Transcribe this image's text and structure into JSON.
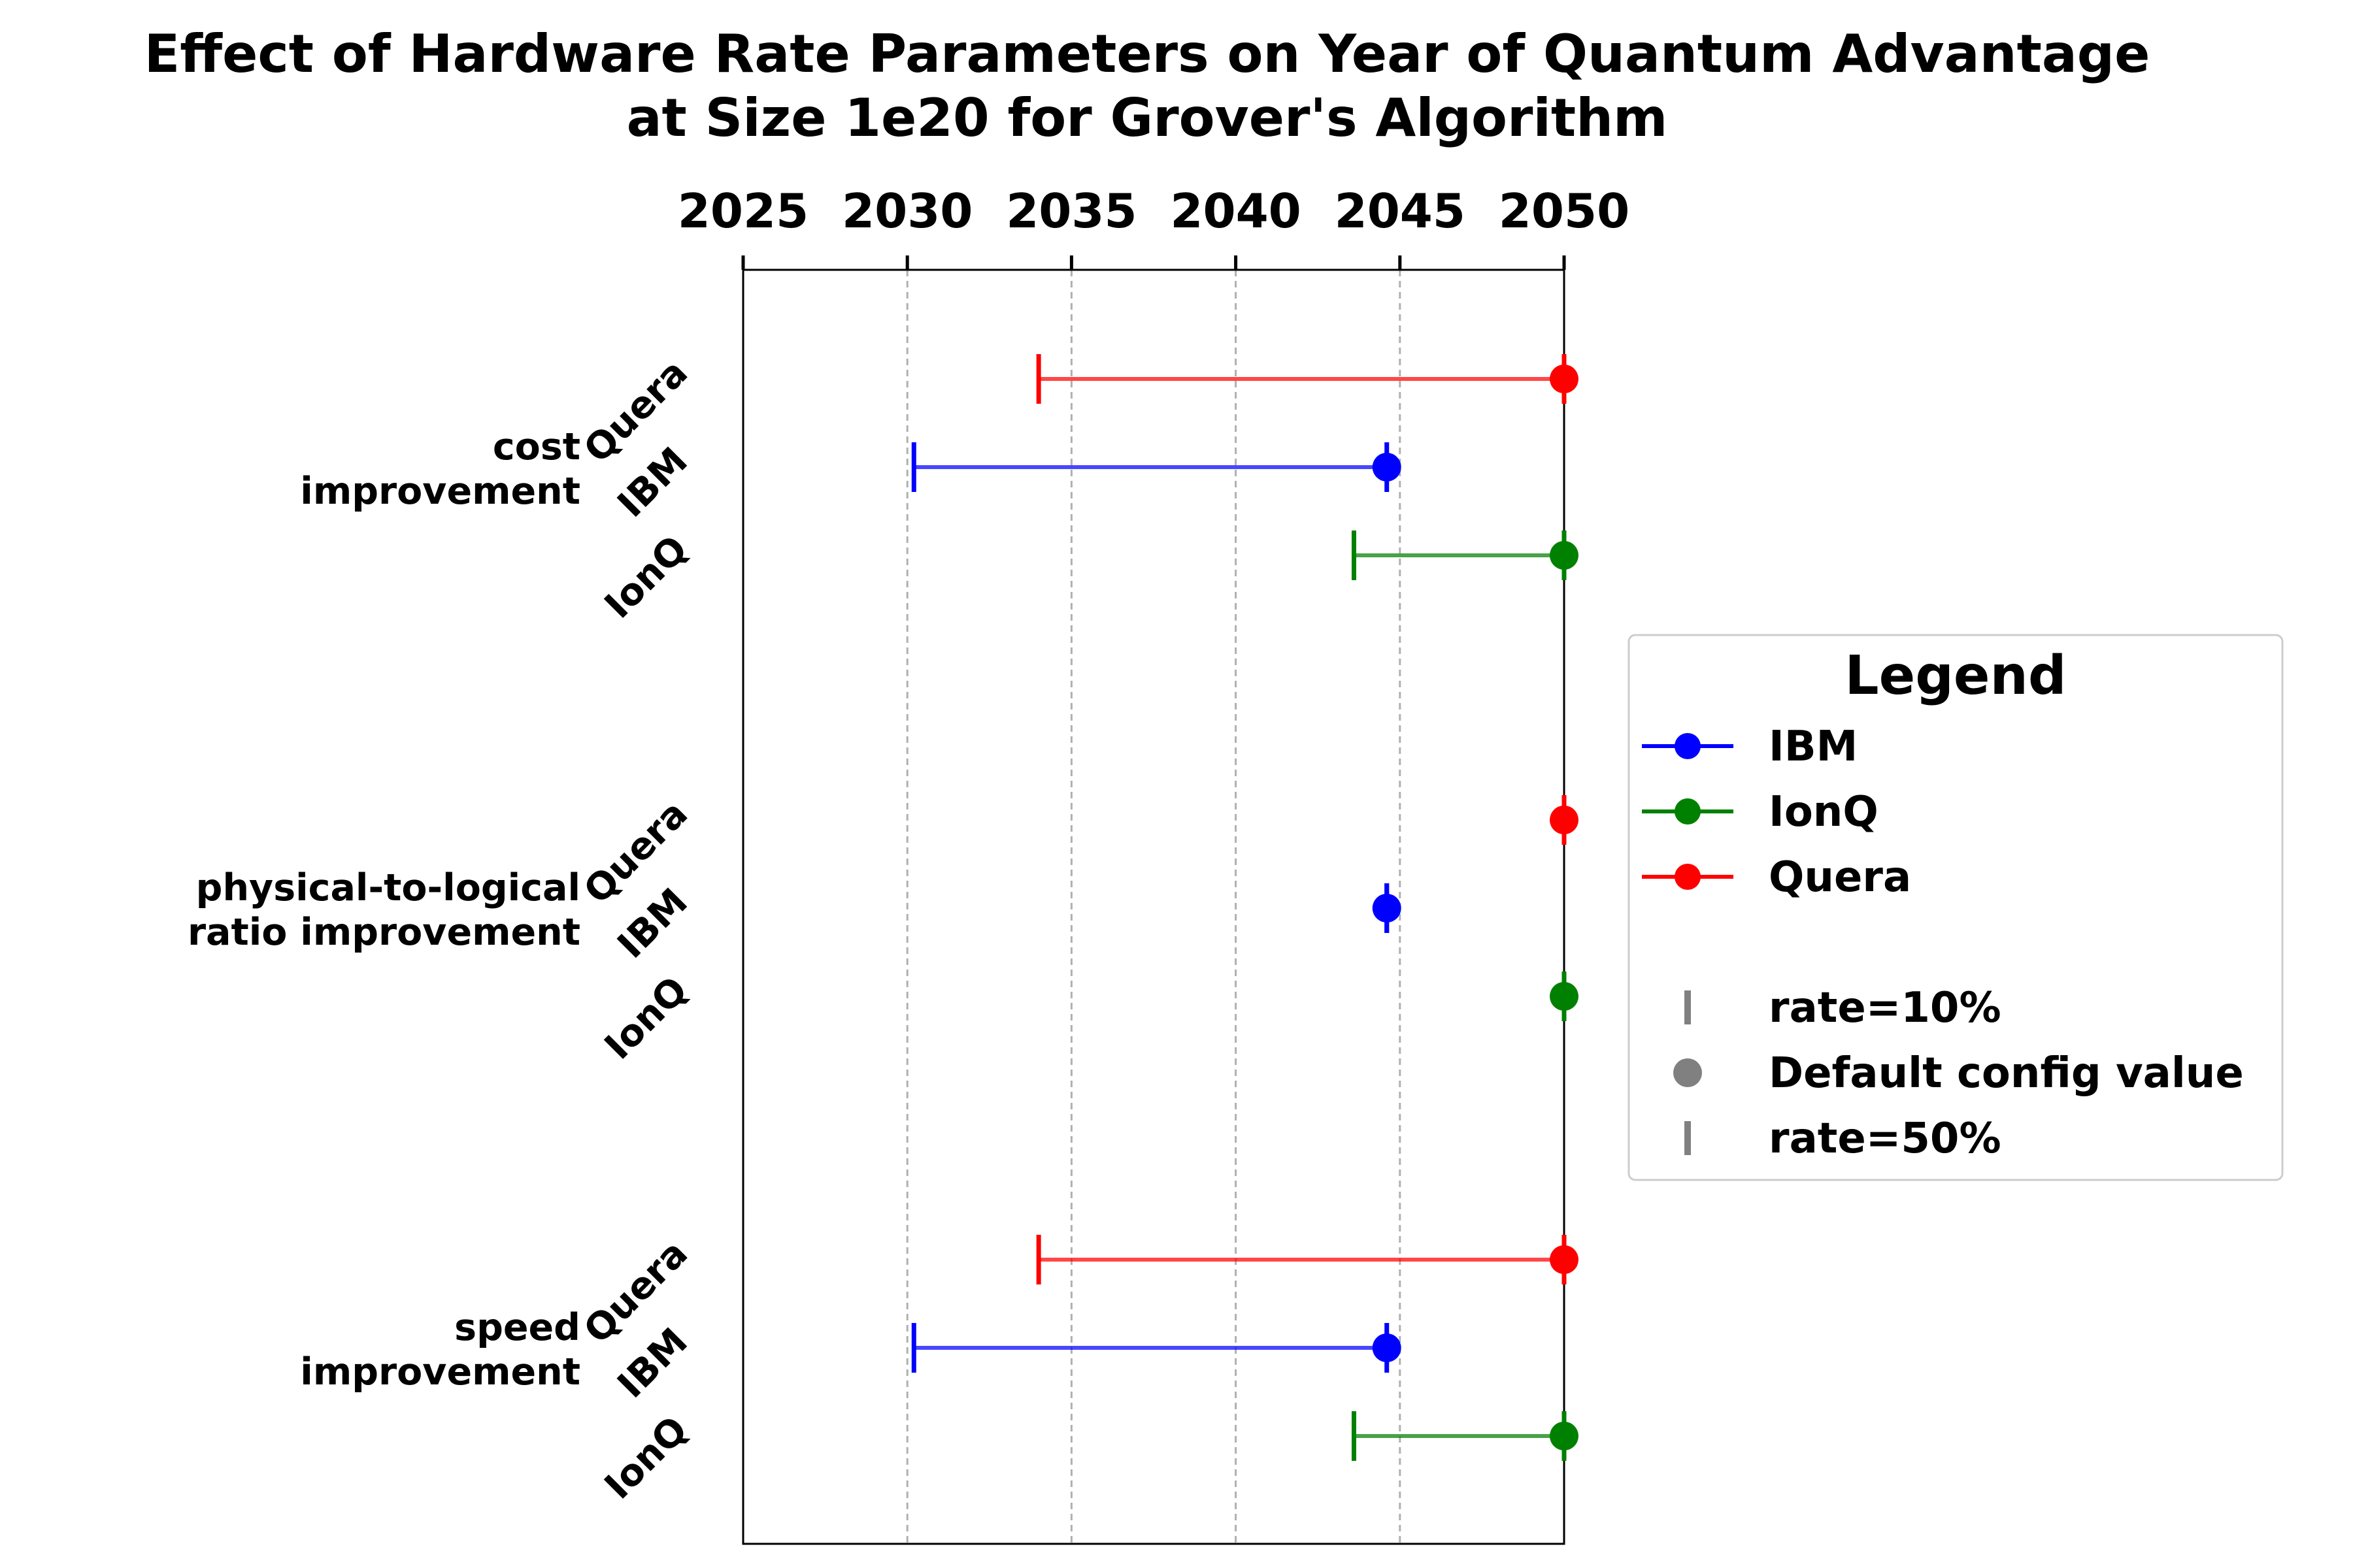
{
  "chart_data": {
    "type": "range-dot",
    "title_lines": [
      "Effect of Hardware Rate Parameters on Year of Quantum Advantage",
      "at Size 1e20 for Grover's Algorithm"
    ],
    "x_axis": {
      "position": "top",
      "range": [
        2025,
        2050
      ],
      "ticks": [
        2025,
        2030,
        2035,
        2040,
        2045,
        2050
      ],
      "tick_labels": [
        "2025",
        "2030",
        "2035",
        "2040",
        "2045",
        "2050"
      ],
      "grid": "vertical dashed"
    },
    "groups": [
      {
        "label_lines": [
          "cost",
          "improvement"
        ],
        "series": [
          {
            "name": "Quera",
            "color": "#ff0000",
            "rate_10": 2034,
            "default": 2050,
            "rate_50": 2050
          },
          {
            "name": "IBM",
            "color": "#0000ff",
            "rate_10": 2030.2,
            "default": 2044.6,
            "rate_50": 2044.6
          },
          {
            "name": "IonQ",
            "color": "#008000",
            "rate_10": 2043.6,
            "default": 2050,
            "rate_50": 2050
          }
        ]
      },
      {
        "label_lines": [
          "physical-to-logical",
          "ratio improvement"
        ],
        "series": [
          {
            "name": "Quera",
            "color": "#ff0000",
            "rate_10": 2050,
            "default": 2050,
            "rate_50": 2050
          },
          {
            "name": "IBM",
            "color": "#0000ff",
            "rate_10": 2044.6,
            "default": 2044.6,
            "rate_50": 2044.6
          },
          {
            "name": "IonQ",
            "color": "#008000",
            "rate_10": 2050,
            "default": 2050,
            "rate_50": 2050
          }
        ]
      },
      {
        "label_lines": [
          "speed",
          "improvement"
        ],
        "series": [
          {
            "name": "Quera",
            "color": "#ff0000",
            "rate_10": 2034,
            "default": 2050,
            "rate_50": 2050
          },
          {
            "name": "IBM",
            "color": "#0000ff",
            "rate_10": 2030.2,
            "default": 2044.6,
            "rate_50": 2044.6
          },
          {
            "name": "IonQ",
            "color": "#008000",
            "rate_10": 2043.6,
            "default": 2050,
            "rate_50": 2050
          }
        ]
      }
    ],
    "legend": {
      "title": "Legend",
      "placement": "right",
      "series_entries": [
        {
          "label": "IBM",
          "color": "#0000ff"
        },
        {
          "label": "IonQ",
          "color": "#008000"
        },
        {
          "label": "Quera",
          "color": "#ff0000"
        }
      ],
      "marker_entries": [
        {
          "label": "rate=10%",
          "marker": "tick",
          "color": "#808080"
        },
        {
          "label": "Default config value",
          "marker": "dot",
          "color": "#808080"
        },
        {
          "label": "rate=50%",
          "marker": "tick",
          "color": "#808080"
        }
      ]
    }
  }
}
